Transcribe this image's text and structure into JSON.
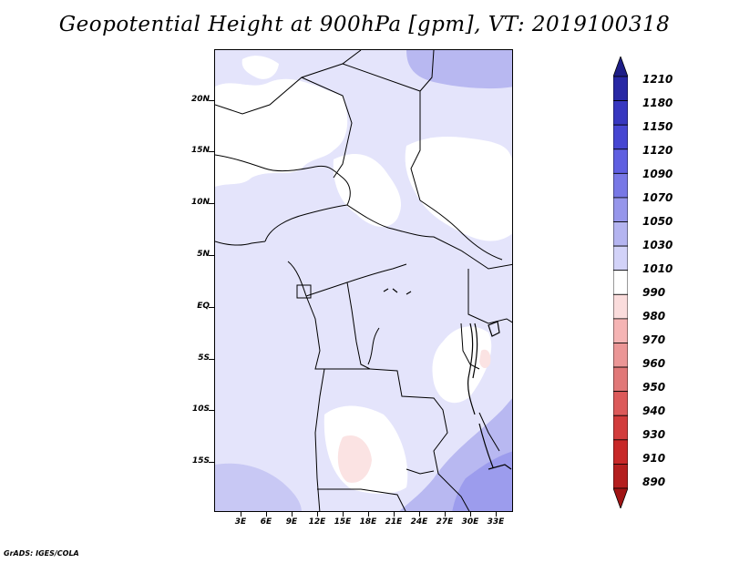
{
  "title": "Geopotential Height at 900hPa [gpm], VT: 2019100318",
  "credit": "GrADS: IGES/COLA",
  "map": {
    "lon_range": [
      0,
      35
    ],
    "lat_range": [
      -20,
      25
    ],
    "y_labels": [
      "20N",
      "15N",
      "10N",
      "5N",
      "EQ",
      "5S",
      "10S",
      "15S"
    ],
    "x_labels": [
      "3E",
      "6E",
      "9E",
      "12E",
      "15E",
      "18E",
      "21E",
      "24E",
      "27E",
      "30E",
      "33E"
    ]
  },
  "legend": {
    "labels": [
      "1210",
      "1180",
      "1150",
      "1120",
      "1090",
      "1070",
      "1050",
      "1030",
      "1010",
      "990",
      "980",
      "970",
      "960",
      "950",
      "940",
      "930",
      "910",
      "890"
    ],
    "colors": [
      "#1e1e87",
      "#2828a5",
      "#3737c0",
      "#4646d2",
      "#5f5fe1",
      "#7878e6",
      "#9696eb",
      "#b4b4f0",
      "#d2d2f8",
      "#ffffff",
      "#fadcdc",
      "#f5b4b4",
      "#eb9696",
      "#e17878",
      "#dc5a5a",
      "#d23c3c",
      "#c82828",
      "#b41e1e",
      "#a01414"
    ]
  }
}
